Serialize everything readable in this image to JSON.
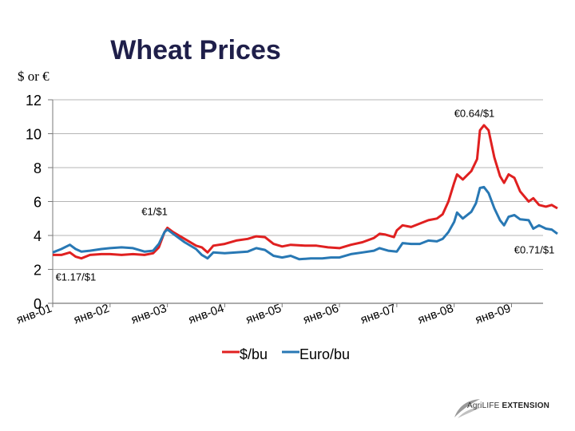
{
  "header": {
    "title": "Wheat Prices",
    "unit_label": "$ or €"
  },
  "chart_data": {
    "type": "line",
    "title": "Wheat Prices",
    "ylabel": "$ or €",
    "ylim": [
      0,
      12
    ],
    "yticks": [
      0,
      2,
      4,
      6,
      8,
      10,
      12
    ],
    "xlim": [
      2001.0,
      2009.55
    ],
    "x_tick_labels": [
      "янв-01",
      "янв-02",
      "янв-03",
      "янв-04",
      "янв-05",
      "янв-06",
      "янв-07",
      "янв-08",
      "янв-09"
    ],
    "x_tick_values": [
      2001,
      2002,
      2003,
      2004,
      2005,
      2006,
      2007,
      2008,
      2009
    ],
    "legend_position": "bottom",
    "grid": true,
    "series": [
      {
        "name": "$/bu",
        "color": "#e02020",
        "points": [
          [
            2001.0,
            2.85
          ],
          [
            2001.15,
            2.85
          ],
          [
            2001.3,
            3.0
          ],
          [
            2001.4,
            2.75
          ],
          [
            2001.5,
            2.65
          ],
          [
            2001.65,
            2.85
          ],
          [
            2001.85,
            2.9
          ],
          [
            2002.0,
            2.9
          ],
          [
            2002.2,
            2.85
          ],
          [
            2002.4,
            2.9
          ],
          [
            2002.6,
            2.85
          ],
          [
            2002.75,
            2.95
          ],
          [
            2002.85,
            3.3
          ],
          [
            2002.95,
            4.2
          ],
          [
            2003.0,
            4.45
          ],
          [
            2003.1,
            4.2
          ],
          [
            2003.3,
            3.8
          ],
          [
            2003.5,
            3.4
          ],
          [
            2003.6,
            3.3
          ],
          [
            2003.7,
            3.0
          ],
          [
            2003.8,
            3.4
          ],
          [
            2004.0,
            3.5
          ],
          [
            2004.2,
            3.7
          ],
          [
            2004.4,
            3.8
          ],
          [
            2004.55,
            3.95
          ],
          [
            2004.7,
            3.9
          ],
          [
            2004.85,
            3.5
          ],
          [
            2005.0,
            3.35
          ],
          [
            2005.15,
            3.45
          ],
          [
            2005.4,
            3.4
          ],
          [
            2005.6,
            3.4
          ],
          [
            2005.8,
            3.3
          ],
          [
            2006.0,
            3.25
          ],
          [
            2006.2,
            3.45
          ],
          [
            2006.4,
            3.6
          ],
          [
            2006.6,
            3.85
          ],
          [
            2006.7,
            4.1
          ],
          [
            2006.8,
            4.05
          ],
          [
            2006.95,
            3.9
          ],
          [
            2007.0,
            4.3
          ],
          [
            2007.1,
            4.6
          ],
          [
            2007.25,
            4.5
          ],
          [
            2007.4,
            4.7
          ],
          [
            2007.55,
            4.9
          ],
          [
            2007.7,
            5.0
          ],
          [
            2007.8,
            5.25
          ],
          [
            2007.9,
            6.0
          ],
          [
            2008.0,
            7.1
          ],
          [
            2008.05,
            7.6
          ],
          [
            2008.15,
            7.3
          ],
          [
            2008.3,
            7.8
          ],
          [
            2008.4,
            8.5
          ],
          [
            2008.45,
            10.2
          ],
          [
            2008.52,
            10.5
          ],
          [
            2008.6,
            10.2
          ],
          [
            2008.7,
            8.6
          ],
          [
            2008.8,
            7.5
          ],
          [
            2008.87,
            7.1
          ],
          [
            2008.95,
            7.6
          ],
          [
            2009.05,
            7.4
          ],
          [
            2009.15,
            6.6
          ],
          [
            2009.3,
            6.0
          ],
          [
            2009.38,
            6.2
          ],
          [
            2009.48,
            5.8
          ],
          [
            2009.6,
            5.7
          ],
          [
            2009.7,
            5.8
          ],
          [
            2009.8,
            5.6
          ]
        ]
      },
      {
        "name": "Euro/bu",
        "color": "#2878b4",
        "points": [
          [
            2001.0,
            3.0
          ],
          [
            2001.15,
            3.2
          ],
          [
            2001.3,
            3.45
          ],
          [
            2001.4,
            3.2
          ],
          [
            2001.5,
            3.05
          ],
          [
            2001.65,
            3.1
          ],
          [
            2001.85,
            3.2
          ],
          [
            2002.0,
            3.25
          ],
          [
            2002.2,
            3.3
          ],
          [
            2002.4,
            3.25
          ],
          [
            2002.6,
            3.05
          ],
          [
            2002.75,
            3.1
          ],
          [
            2002.85,
            3.5
          ],
          [
            2002.95,
            4.2
          ],
          [
            2003.0,
            4.35
          ],
          [
            2003.1,
            4.1
          ],
          [
            2003.3,
            3.6
          ],
          [
            2003.5,
            3.2
          ],
          [
            2003.6,
            2.85
          ],
          [
            2003.7,
            2.65
          ],
          [
            2003.8,
            3.0
          ],
          [
            2004.0,
            2.95
          ],
          [
            2004.2,
            3.0
          ],
          [
            2004.4,
            3.05
          ],
          [
            2004.55,
            3.25
          ],
          [
            2004.7,
            3.15
          ],
          [
            2004.85,
            2.8
          ],
          [
            2005.0,
            2.7
          ],
          [
            2005.15,
            2.8
          ],
          [
            2005.3,
            2.6
          ],
          [
            2005.5,
            2.65
          ],
          [
            2005.7,
            2.65
          ],
          [
            2005.85,
            2.7
          ],
          [
            2006.0,
            2.7
          ],
          [
            2006.2,
            2.9
          ],
          [
            2006.4,
            3.0
          ],
          [
            2006.6,
            3.1
          ],
          [
            2006.7,
            3.25
          ],
          [
            2006.85,
            3.1
          ],
          [
            2007.0,
            3.05
          ],
          [
            2007.1,
            3.55
          ],
          [
            2007.25,
            3.5
          ],
          [
            2007.4,
            3.5
          ],
          [
            2007.55,
            3.7
          ],
          [
            2007.7,
            3.65
          ],
          [
            2007.8,
            3.8
          ],
          [
            2007.9,
            4.2
          ],
          [
            2008.0,
            4.8
          ],
          [
            2008.05,
            5.35
          ],
          [
            2008.15,
            5.0
          ],
          [
            2008.3,
            5.4
          ],
          [
            2008.38,
            5.9
          ],
          [
            2008.45,
            6.8
          ],
          [
            2008.52,
            6.85
          ],
          [
            2008.6,
            6.5
          ],
          [
            2008.7,
            5.6
          ],
          [
            2008.8,
            4.9
          ],
          [
            2008.87,
            4.6
          ],
          [
            2008.95,
            5.1
          ],
          [
            2009.05,
            5.2
          ],
          [
            2009.15,
            4.95
          ],
          [
            2009.3,
            4.9
          ],
          [
            2009.38,
            4.4
          ],
          [
            2009.48,
            4.6
          ],
          [
            2009.6,
            4.4
          ],
          [
            2009.7,
            4.35
          ],
          [
            2009.8,
            4.1
          ]
        ]
      }
    ],
    "annotations": [
      {
        "text": "€1.17/$1",
        "x": 2001.05,
        "y": 1.35
      },
      {
        "text": "€1/$1",
        "x": 2002.55,
        "y": 5.2
      },
      {
        "text": "€0.64/$1",
        "x": 2008.0,
        "y": 11.0
      },
      {
        "text": "€0.71/$1",
        "x": 2009.75,
        "y": 2.95
      }
    ]
  },
  "footer": {
    "logo_text_a": "AgriLIFE",
    "logo_text_b": "EXTENSION"
  },
  "colors": {
    "title": "#1f1f4a",
    "grid": "#b4b4b4",
    "axis": "#7a7a7a"
  }
}
